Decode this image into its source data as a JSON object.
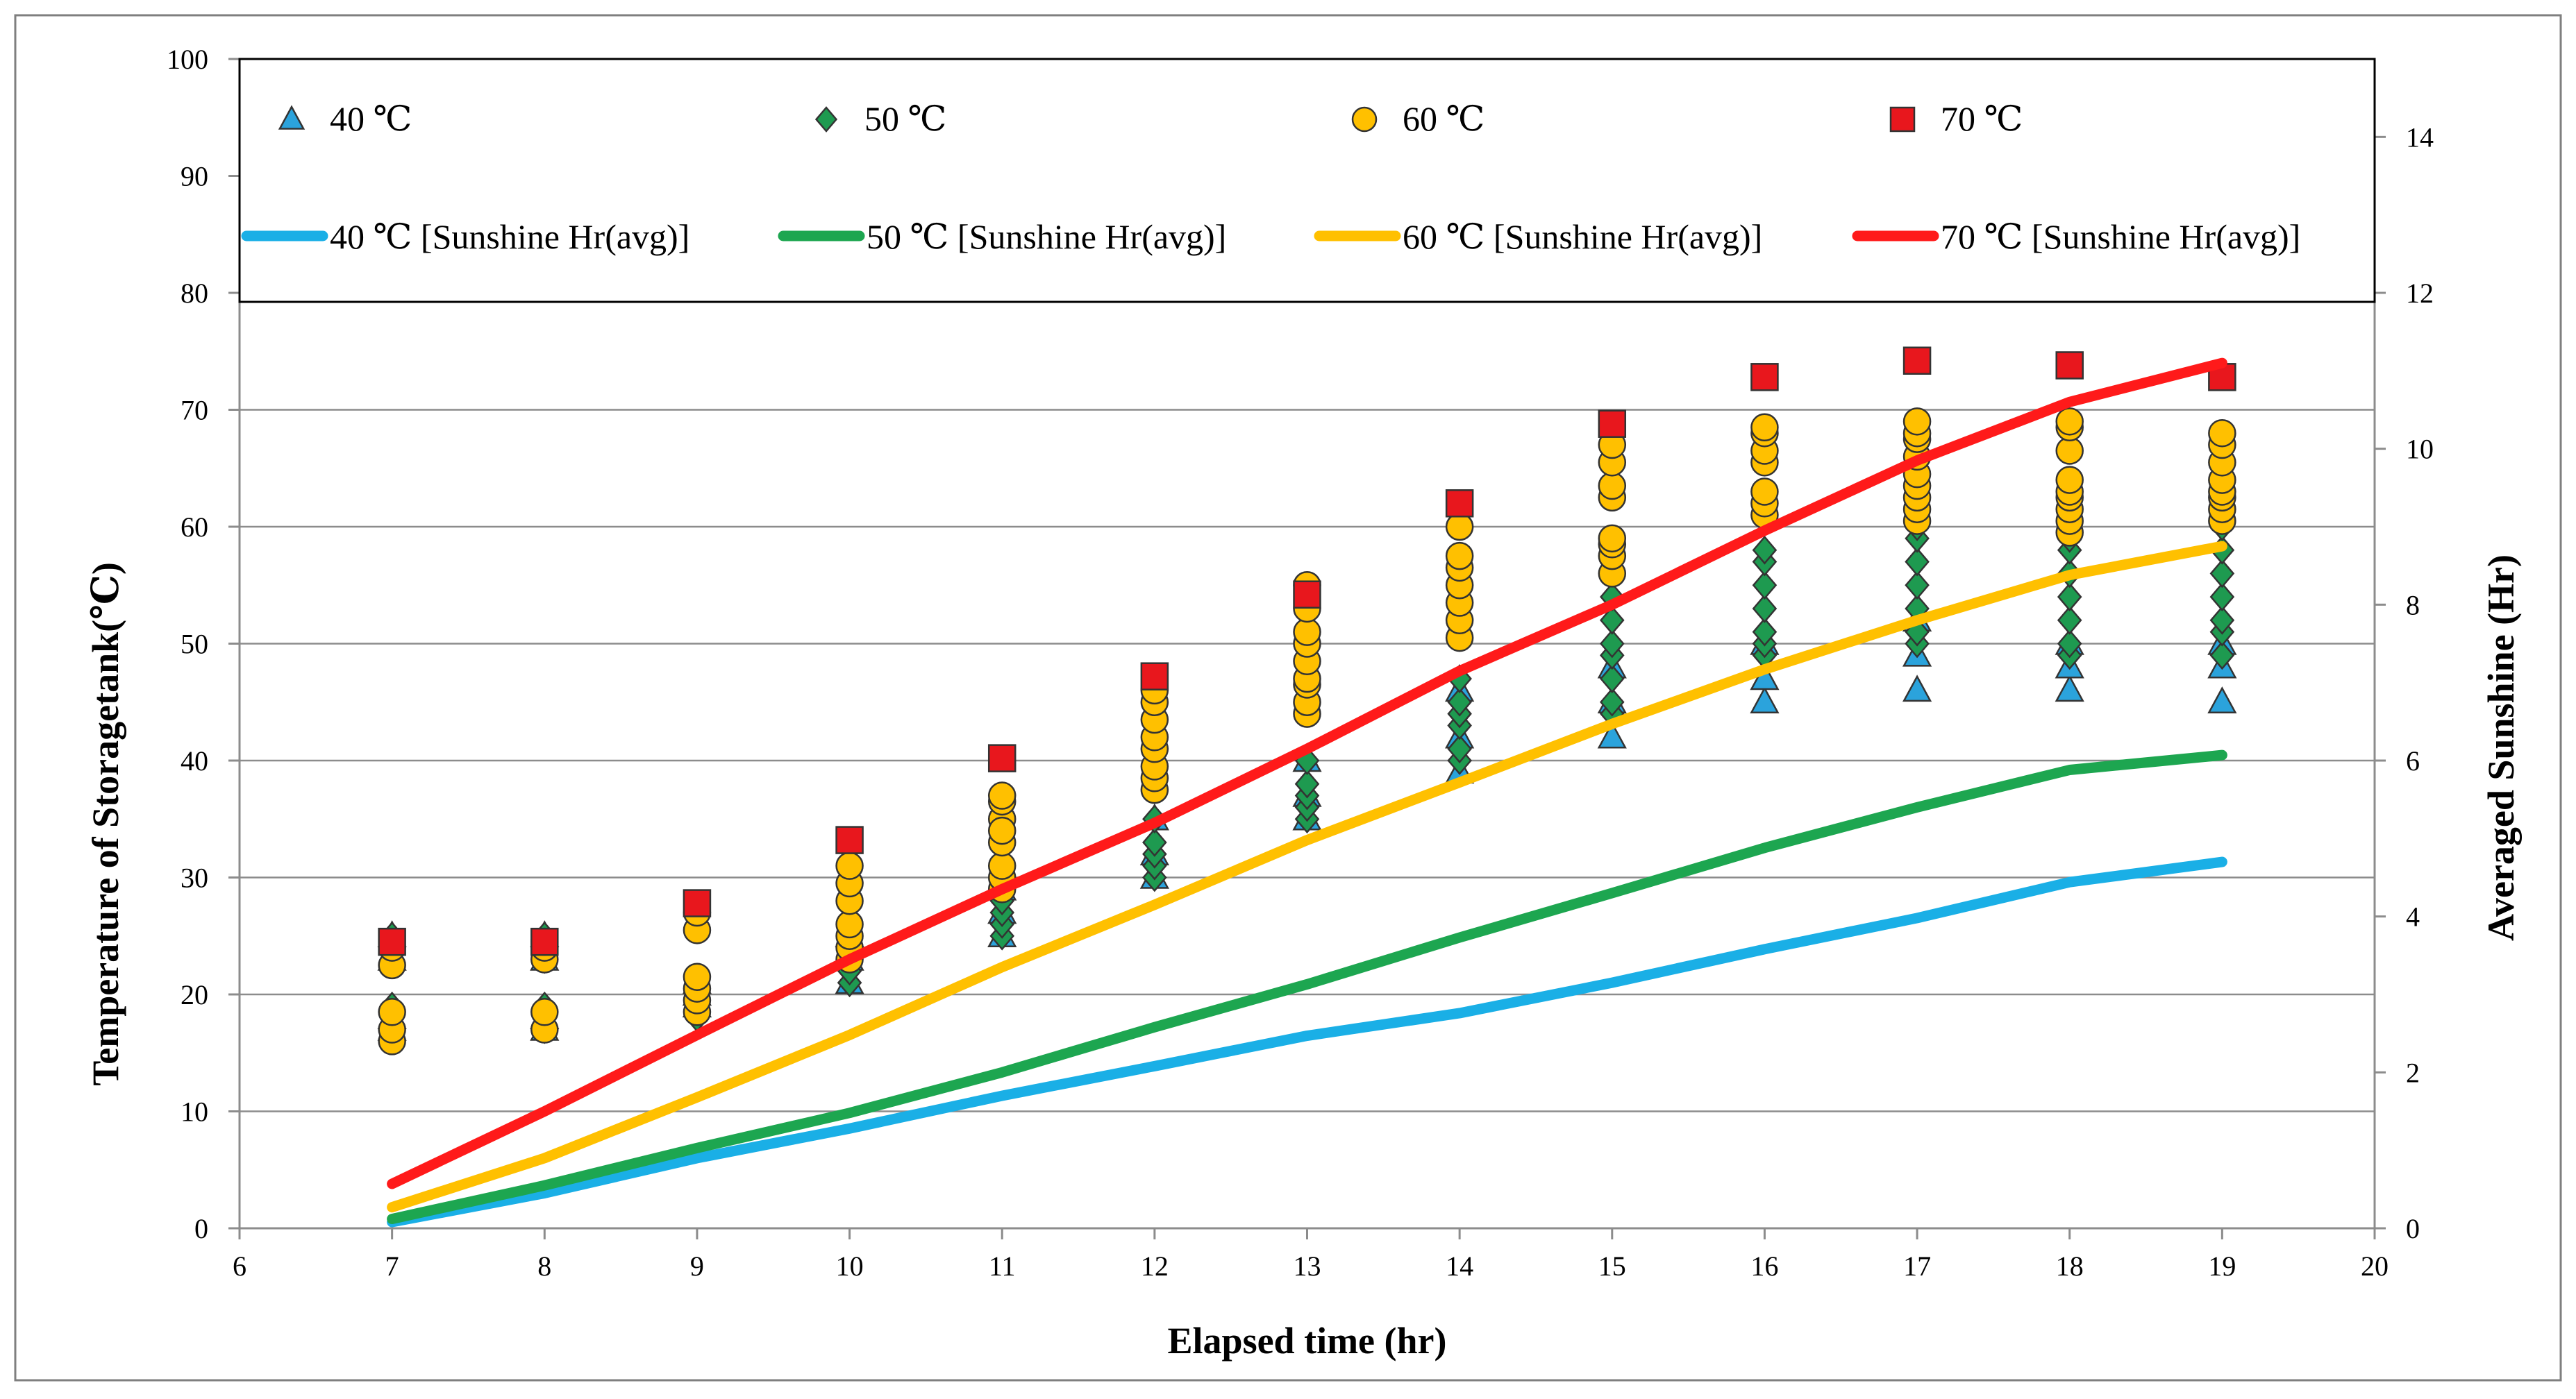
{
  "chart_data": {
    "type": "scatter",
    "xlabel": "Elapsed time (hr)",
    "ylabel": "Temperature of Storagetank(℃)",
    "y2label": "Averaged Sunshine (Hr)",
    "xlim": [
      6,
      20
    ],
    "ylim": [
      0,
      100
    ],
    "y2lim": [
      0,
      15
    ],
    "grid": true,
    "legend_position": "top",
    "x_ticks": [
      "6",
      "7",
      "8",
      "9",
      "10",
      "11",
      "12",
      "13",
      "14",
      "15",
      "16",
      "17",
      "18",
      "19",
      "20"
    ],
    "y_ticks": [
      "0",
      "10",
      "20",
      "30",
      "40",
      "50",
      "60",
      "70",
      "80",
      "90",
      "100"
    ],
    "y2_ticks": [
      "0",
      "2",
      "4",
      "6",
      "8",
      "10",
      "12",
      "14"
    ],
    "scatter_series": [
      {
        "name": "40 ℃",
        "marker": "triangle",
        "color": "#2BA3DC",
        "x": [
          7,
          7,
          7,
          7,
          8,
          8,
          8,
          8,
          9,
          9,
          9,
          10,
          10,
          10,
          11,
          11,
          11,
          12,
          12,
          12,
          13,
          13,
          13,
          14,
          14,
          14,
          15,
          15,
          15,
          16,
          16,
          16,
          17,
          17,
          17,
          18,
          18,
          18,
          19,
          19,
          19
        ],
        "y": [
          17,
          18,
          23,
          25,
          17,
          18,
          23,
          25,
          19,
          20,
          21,
          21,
          23,
          25,
          25,
          27,
          29,
          30,
          32,
          35,
          35,
          37,
          40,
          39,
          42,
          46,
          42,
          45,
          48,
          45,
          47,
          50,
          46,
          49,
          52,
          46,
          48,
          50,
          45,
          48,
          50
        ]
      },
      {
        "name": "50 ℃",
        "marker": "diamond",
        "color": "#1E9A50",
        "x": [
          7,
          7,
          7,
          7,
          8,
          8,
          8,
          8,
          9,
          9,
          9,
          9,
          10,
          10,
          10,
          10,
          11,
          11,
          11,
          11,
          11,
          12,
          12,
          12,
          12,
          12,
          13,
          13,
          13,
          13,
          13,
          14,
          14,
          14,
          14,
          14,
          14,
          15,
          15,
          15,
          15,
          15,
          15,
          15,
          16,
          16,
          16,
          16,
          16,
          16,
          16,
          17,
          17,
          17,
          17,
          17,
          17,
          17,
          18,
          18,
          18,
          18,
          18,
          18,
          18,
          19,
          19,
          19,
          19,
          19,
          19,
          19
        ],
        "y": [
          17,
          19,
          23,
          25,
          17,
          19,
          23,
          25,
          18,
          19,
          20,
          21,
          21,
          22,
          24,
          25,
          25,
          26,
          27,
          28,
          30,
          30,
          31,
          32,
          33,
          35,
          35,
          36,
          37,
          38,
          40,
          40,
          41,
          43,
          44,
          45,
          47,
          44,
          45,
          47,
          49,
          50,
          52,
          54,
          49,
          50,
          51,
          53,
          55,
          57,
          58,
          50,
          51,
          53,
          55,
          57,
          59,
          60,
          49,
          50,
          52,
          54,
          56,
          58,
          59,
          49,
          51,
          52,
          54,
          56,
          58,
          60
        ]
      },
      {
        "name": "60 ℃",
        "marker": "circle",
        "color": "#FFC000",
        "x": [
          7,
          7,
          7,
          7,
          7,
          8,
          8,
          8,
          8,
          8,
          9,
          9,
          9,
          9,
          9,
          9,
          10,
          10,
          10,
          10,
          10,
          10,
          10,
          11,
          11,
          11,
          11,
          11,
          11,
          11,
          11,
          12,
          12,
          12,
          12,
          12,
          12,
          12,
          12,
          13,
          13,
          13,
          13,
          13,
          13,
          13,
          13,
          13,
          14,
          14,
          14,
          14,
          14,
          14,
          14,
          15,
          15,
          15,
          15,
          15,
          15,
          15,
          15,
          16,
          16,
          16,
          16,
          16,
          16,
          16,
          17,
          17,
          17,
          17,
          17,
          17,
          17,
          17,
          17,
          18,
          18,
          18,
          18,
          18,
          18,
          18,
          18,
          18,
          19,
          19,
          19,
          19,
          19,
          19,
          19,
          19
        ],
        "y": [
          16,
          17,
          18.5,
          22.5,
          24,
          17,
          18.5,
          23,
          24,
          24.5,
          18.5,
          19.5,
          20.5,
          21.5,
          25.5,
          27,
          23,
          24,
          25,
          26,
          28,
          29.5,
          31,
          29,
          30,
          31,
          33,
          35,
          36.5,
          37,
          34,
          37.5,
          38.5,
          39.5,
          41,
          42,
          43.5,
          45,
          46,
          44,
          45,
          46.5,
          47,
          48.5,
          50,
          51,
          53,
          55,
          50.5,
          52,
          53.5,
          55,
          56.5,
          57.5,
          60,
          56,
          57.5,
          58.5,
          59,
          62.5,
          63.5,
          65.5,
          67,
          61,
          62,
          63,
          65.5,
          66.5,
          68,
          68.5,
          60.5,
          61.5,
          62.5,
          63.5,
          64.5,
          66,
          67.5,
          68,
          69,
          59.5,
          60.5,
          61.5,
          62.5,
          63,
          64,
          66.5,
          68.5,
          69,
          60.5,
          61.5,
          62.5,
          63,
          64,
          65.5,
          67,
          68
        ]
      },
      {
        "name": "70 ℃",
        "marker": "square",
        "color": "#E8171D",
        "x": [
          7,
          8,
          9,
          10,
          11,
          12,
          13,
          14,
          15,
          16,
          17,
          18,
          19
        ],
        "y": [
          24.5,
          24.5,
          27.8,
          33.2,
          40.2,
          47.2,
          54.2,
          62,
          68.8,
          72.8,
          74.2,
          73.8,
          72.8
        ]
      }
    ],
    "line_series": [
      {
        "name": "40 ℃ [Sunshine  Hr(avg)]",
        "color": "#1AAFE6",
        "axis": "right",
        "x": [
          7,
          8,
          9,
          10,
          11,
          12,
          13,
          14,
          15,
          16,
          17,
          18,
          19
        ],
        "y": [
          0.08,
          0.45,
          0.9,
          1.28,
          1.7,
          2.08,
          2.47,
          2.76,
          3.15,
          3.58,
          3.98,
          4.44,
          4.7
        ]
      },
      {
        "name": "50 ℃ [Sunshine  Hr(avg)]",
        "color": "#1DA650",
        "axis": "right",
        "x": [
          7,
          8,
          9,
          10,
          11,
          12,
          13,
          14,
          15,
          16,
          17,
          18,
          19
        ],
        "y": [
          0.12,
          0.55,
          1.03,
          1.48,
          2.0,
          2.58,
          3.13,
          3.73,
          4.3,
          4.88,
          5.4,
          5.88,
          6.07
        ]
      },
      {
        "name": "60 ℃ [Sunshine  Hr(avg)]",
        "color": "#FFC000",
        "axis": "right",
        "x": [
          7,
          8,
          9,
          10,
          11,
          12,
          13,
          14,
          15,
          16,
          17,
          18,
          19
        ],
        "y": [
          0.27,
          0.9,
          1.68,
          2.48,
          3.35,
          4.15,
          4.98,
          5.72,
          6.47,
          7.17,
          7.8,
          8.38,
          8.75
        ]
      },
      {
        "name": "70 ℃ [Sunshine  Hr(avg)]",
        "color": "#FF1A1A",
        "axis": "right",
        "x": [
          7,
          8,
          9,
          10,
          11,
          12,
          13,
          14,
          15,
          16,
          17,
          18,
          19
        ],
        "y": [
          0.57,
          1.5,
          2.48,
          3.45,
          4.35,
          5.2,
          6.15,
          7.15,
          8.0,
          8.95,
          9.85,
          10.6,
          11.1
        ]
      }
    ]
  }
}
